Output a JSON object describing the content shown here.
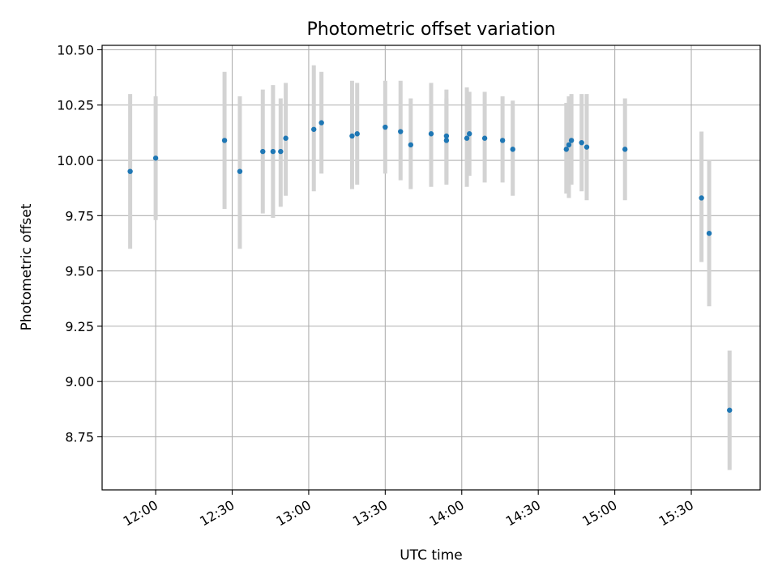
{
  "chart_data": {
    "type": "scatter",
    "title": "Photometric offset variation",
    "xlabel": "UTC time",
    "ylabel": "Photometric offset",
    "xlim": [
      "11:39",
      "15:57"
    ],
    "ylim": [
      8.51,
      10.52
    ],
    "grid": true,
    "x_ticks": [
      "12:00",
      "12:30",
      "13:00",
      "13:30",
      "14:00",
      "14:30",
      "15:00",
      "15:30"
    ],
    "y_ticks": [
      "8.75",
      "9.00",
      "9.25",
      "9.50",
      "9.75",
      "10.00",
      "10.25",
      "10.50"
    ],
    "colors": {
      "points": "#1f77b4",
      "errorbars": "#d3d3d3",
      "grid": "#b0b0b0"
    },
    "points": [
      {
        "time": "11:50",
        "value": 9.95,
        "low": 9.6,
        "high": 10.3
      },
      {
        "time": "12:00",
        "value": 10.01,
        "low": 9.73,
        "high": 10.29
      },
      {
        "time": "12:27",
        "value": 10.09,
        "low": 9.78,
        "high": 10.4
      },
      {
        "time": "12:33",
        "value": 9.95,
        "low": 9.6,
        "high": 10.29
      },
      {
        "time": "12:42",
        "value": 10.04,
        "low": 9.76,
        "high": 10.32
      },
      {
        "time": "12:46",
        "value": 10.04,
        "low": 9.74,
        "high": 10.34
      },
      {
        "time": "12:49",
        "value": 10.04,
        "low": 9.79,
        "high": 10.28
      },
      {
        "time": "12:51",
        "value": 10.1,
        "low": 9.84,
        "high": 10.35
      },
      {
        "time": "13:02",
        "value": 10.14,
        "low": 9.86,
        "high": 10.43
      },
      {
        "time": "13:05",
        "value": 10.17,
        "low": 9.94,
        "high": 10.4
      },
      {
        "time": "13:17",
        "value": 10.11,
        "low": 9.87,
        "high": 10.36
      },
      {
        "time": "13:19",
        "value": 10.12,
        "low": 9.89,
        "high": 10.35
      },
      {
        "time": "13:30",
        "value": 10.15,
        "low": 9.94,
        "high": 10.36
      },
      {
        "time": "13:36",
        "value": 10.13,
        "low": 9.91,
        "high": 10.36
      },
      {
        "time": "13:40",
        "value": 10.07,
        "low": 9.87,
        "high": 10.28
      },
      {
        "time": "13:48",
        "value": 10.12,
        "low": 9.88,
        "high": 10.35
      },
      {
        "time": "13:54",
        "value": 10.11,
        "low": 9.91,
        "high": 10.32
      },
      {
        "time": "13:54",
        "value": 10.09,
        "low": 9.89,
        "high": 10.28
      },
      {
        "time": "14:02",
        "value": 10.1,
        "low": 9.88,
        "high": 10.33
      },
      {
        "time": "14:03",
        "value": 10.12,
        "low": 9.93,
        "high": 10.31
      },
      {
        "time": "14:09",
        "value": 10.1,
        "low": 9.9,
        "high": 10.31
      },
      {
        "time": "14:16",
        "value": 10.09,
        "low": 9.9,
        "high": 10.29
      },
      {
        "time": "14:20",
        "value": 10.05,
        "low": 9.84,
        "high": 10.27
      },
      {
        "time": "14:41",
        "value": 10.05,
        "low": 9.85,
        "high": 10.26
      },
      {
        "time": "14:42",
        "value": 10.07,
        "low": 9.83,
        "high": 10.29
      },
      {
        "time": "14:43",
        "value": 10.09,
        "low": 9.89,
        "high": 10.3
      },
      {
        "time": "14:47",
        "value": 10.08,
        "low": 9.86,
        "high": 10.3
      },
      {
        "time": "14:49",
        "value": 10.06,
        "low": 9.82,
        "high": 10.3
      },
      {
        "time": "15:04",
        "value": 10.05,
        "low": 9.82,
        "high": 10.28
      },
      {
        "time": "15:34",
        "value": 9.83,
        "low": 9.54,
        "high": 10.13
      },
      {
        "time": "15:37",
        "value": 9.67,
        "low": 9.34,
        "high": 10.0
      },
      {
        "time": "15:45",
        "value": 8.87,
        "low": 8.6,
        "high": 9.14
      }
    ]
  }
}
